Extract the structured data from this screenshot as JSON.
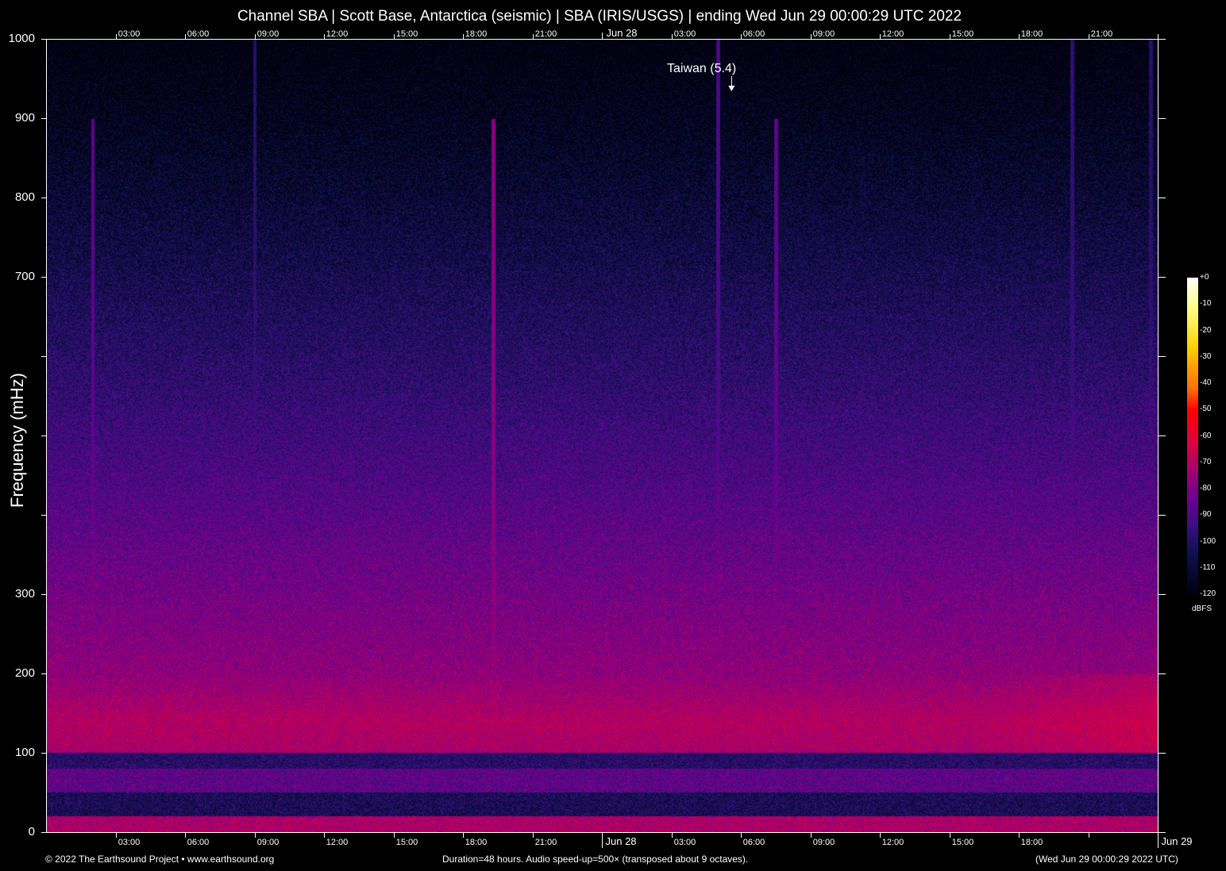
{
  "chart_data": {
    "type": "heatmap",
    "title": "Channel SBA | Scott Base, Antarctica (seismic) | SBA (IRIS/USGS) | ending Wed Jun 29 00:00:29 UTC 2022",
    "ylabel": "Frequency (mHz)",
    "ylim": [
      0,
      1000
    ],
    "ytick_labels": [
      "1000",
      "900",
      "800",
      "700",
      "300",
      "200",
      "100",
      "0"
    ],
    "ytick_values": [
      1000,
      900,
      800,
      700,
      300,
      200,
      100,
      0
    ],
    "ytick_marks": [
      0,
      100,
      200,
      300,
      400,
      500,
      600,
      700,
      800,
      900,
      1000
    ],
    "x_range_hours": [
      0,
      48
    ],
    "xticks_top": [
      {
        "h": 3,
        "label": "03:00"
      },
      {
        "h": 6,
        "label": "06:00"
      },
      {
        "h": 9,
        "label": "09:00"
      },
      {
        "h": 12,
        "label": "12:00"
      },
      {
        "h": 15,
        "label": "15:00"
      },
      {
        "h": 18,
        "label": "18:00"
      },
      {
        "h": 21,
        "label": "21:00"
      },
      {
        "h": 24,
        "label": "Jun 28"
      },
      {
        "h": 27,
        "label": "03:00"
      },
      {
        "h": 30,
        "label": "06:00"
      },
      {
        "h": 33,
        "label": "09:00"
      },
      {
        "h": 36,
        "label": "12:00"
      },
      {
        "h": 39,
        "label": "15:00"
      },
      {
        "h": 42,
        "label": "18:00"
      },
      {
        "h": 45,
        "label": "21:00"
      },
      {
        "h": 48,
        "label": ""
      }
    ],
    "xticks_bottom": [
      {
        "h": 3,
        "label": "03:00"
      },
      {
        "h": 6,
        "label": "06:00"
      },
      {
        "h": 9,
        "label": "09:00"
      },
      {
        "h": 12,
        "label": "12:00"
      },
      {
        "h": 15,
        "label": "15:00"
      },
      {
        "h": 18,
        "label": "18:00"
      },
      {
        "h": 21,
        "label": "21:00"
      },
      {
        "h": 24,
        "label": "Jun 28"
      },
      {
        "h": 27,
        "label": "03:00"
      },
      {
        "h": 30,
        "label": "06:00"
      },
      {
        "h": 33,
        "label": "09:00"
      },
      {
        "h": 36,
        "label": "12:00"
      },
      {
        "h": 39,
        "label": "15:00"
      },
      {
        "h": 42,
        "label": "18:00"
      },
      {
        "h": 45,
        "label": ""
      },
      {
        "h": 48,
        "label": "Jun 29"
      }
    ],
    "colorbar": {
      "unit": "dBFS",
      "range": [
        -120,
        0
      ],
      "ticks": [
        "+0",
        "-10",
        "-20",
        "-30",
        "-40",
        "-50",
        "-60",
        "-70",
        "-80",
        "-90",
        "-100",
        "-110",
        "-120"
      ]
    },
    "annotations": [
      {
        "label": "Taiwan (5.4)",
        "h": 29.6
      }
    ],
    "colormap": "fire"
  },
  "footer": {
    "copyright": "© 2022 The Earthsound Project • www.earthsound.org",
    "duration": "Duration=48 hours. Audio speed-up=500× (transposed about 9 octaves).",
    "timestamp": "(Wed Jun 29 00:00:29 2022 UTC)"
  }
}
